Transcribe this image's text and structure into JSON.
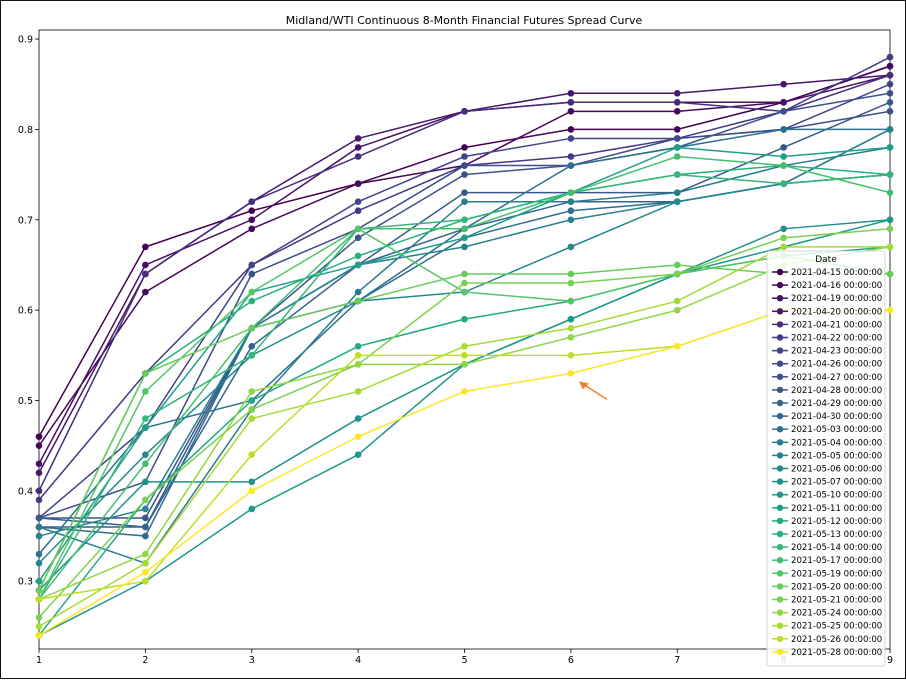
{
  "chart_data": {
    "type": "line",
    "title": "Midland/WTI Continuous 8-Month Financial Futures Spread Curve",
    "xlabel": "",
    "ylabel": "",
    "x": [
      1,
      2,
      3,
      4,
      5,
      6,
      7,
      8,
      9
    ],
    "xlim": [
      1,
      9
    ],
    "ylim": [
      0.225,
      0.91
    ],
    "yticks": [
      0.3,
      0.4,
      0.5,
      0.6,
      0.7,
      0.8,
      0.9
    ],
    "grid": false,
    "legend_title": "Date",
    "legend_position": "center-right",
    "annotation": "orange-arrow",
    "annotation_color": "#f08030",
    "series": [
      {
        "name": "2021-04-15 00:00:00",
        "color": "#440154",
        "values": [
          0.46,
          0.67,
          0.71,
          0.74,
          0.78,
          0.8,
          0.8,
          0.83,
          0.87
        ]
      },
      {
        "name": "2021-04-16 00:00:00",
        "color": "#46085c",
        "values": [
          0.45,
          0.62,
          0.69,
          0.74,
          0.76,
          0.82,
          0.82,
          0.83,
          0.87
        ]
      },
      {
        "name": "2021-04-19 00:00:00",
        "color": "#471063",
        "values": [
          0.43,
          0.65,
          0.7,
          0.78,
          0.82,
          0.83,
          0.83,
          0.83,
          0.86
        ]
      },
      {
        "name": "2021-04-20 00:00:00",
        "color": "#48186a",
        "values": [
          0.42,
          0.64,
          0.72,
          0.79,
          0.82,
          0.84,
          0.84,
          0.85,
          0.86
        ]
      },
      {
        "name": "2021-04-21 00:00:00",
        "color": "#472d7b",
        "values": [
          0.4,
          0.64,
          0.72,
          0.77,
          0.82,
          0.83,
          0.83,
          0.82,
          0.86
        ]
      },
      {
        "name": "2021-04-22 00:00:00",
        "color": "#443983",
        "values": [
          0.39,
          0.53,
          0.65,
          0.71,
          0.76,
          0.77,
          0.79,
          0.82,
          0.88
        ]
      },
      {
        "name": "2021-04-23 00:00:00",
        "color": "#414487",
        "values": [
          0.37,
          0.47,
          0.65,
          0.72,
          0.77,
          0.79,
          0.79,
          0.8,
          0.85
        ]
      },
      {
        "name": "2021-04-26 00:00:00",
        "color": "#3e4c8a",
        "values": [
          0.37,
          0.41,
          0.64,
          0.69,
          0.76,
          0.76,
          0.79,
          0.8,
          0.82
        ]
      },
      {
        "name": "2021-04-27 00:00:00",
        "color": "#3b528b",
        "values": [
          0.37,
          0.37,
          0.58,
          0.68,
          0.75,
          0.76,
          0.78,
          0.82,
          0.84
        ]
      },
      {
        "name": "2021-04-28 00:00:00",
        "color": "#375a8c",
        "values": [
          0.37,
          0.36,
          0.58,
          0.65,
          0.73,
          0.73,
          0.73,
          0.78,
          0.83
        ]
      },
      {
        "name": "2021-04-29 00:00:00",
        "color": "#33638d",
        "values": [
          0.36,
          0.36,
          0.56,
          0.65,
          0.69,
          0.72,
          0.72,
          0.74,
          0.75
        ]
      },
      {
        "name": "2021-04-30 00:00:00",
        "color": "#2f6c8e",
        "values": [
          0.36,
          0.35,
          0.58,
          0.61,
          0.68,
          0.71,
          0.72,
          0.74,
          0.8
        ]
      },
      {
        "name": "2021-05-03 00:00:00",
        "color": "#2c728e",
        "values": [
          0.33,
          0.47,
          0.5,
          0.61,
          0.69,
          0.76,
          0.78,
          0.8,
          0.8
        ]
      },
      {
        "name": "2021-05-04 00:00:00",
        "color": "#297b8e",
        "values": [
          0.36,
          0.32,
          0.49,
          0.62,
          0.72,
          0.72,
          0.73,
          0.76,
          0.78
        ]
      },
      {
        "name": "2021-05-05 00:00:00",
        "color": "#26828e",
        "values": [
          0.35,
          0.38,
          0.58,
          0.65,
          0.67,
          0.7,
          0.72,
          0.74,
          0.8
        ]
      },
      {
        "name": "2021-05-06 00:00:00",
        "color": "#23898e",
        "values": [
          0.32,
          0.44,
          0.55,
          0.61,
          0.62,
          0.67,
          0.72,
          0.74,
          0.75
        ]
      },
      {
        "name": "2021-05-07 00:00:00",
        "color": "#21918c",
        "values": [
          0.29,
          0.41,
          0.41,
          0.48,
          0.54,
          0.59,
          0.64,
          0.69,
          0.7
        ]
      },
      {
        "name": "2021-05-10 00:00:00",
        "color": "#1f988b",
        "values": [
          0.24,
          0.3,
          0.38,
          0.44,
          0.54,
          0.59,
          0.64,
          0.67,
          0.7
        ]
      },
      {
        "name": "2021-05-11 00:00:00",
        "color": "#1fa088",
        "values": [
          0.3,
          0.47,
          0.62,
          0.65,
          0.68,
          0.73,
          0.78,
          0.77,
          0.78
        ]
      },
      {
        "name": "2021-05-12 00:00:00",
        "color": "#22a884",
        "values": [
          0.24,
          0.39,
          0.5,
          0.56,
          0.59,
          0.61,
          0.64,
          0.66,
          0.67
        ]
      },
      {
        "name": "2021-05-13 00:00:00",
        "color": "#2ab07f",
        "values": [
          0.29,
          0.53,
          0.61,
          0.66,
          0.7,
          0.73,
          0.75,
          0.76,
          0.75
        ]
      },
      {
        "name": "2021-05-14 00:00:00",
        "color": "#35b779",
        "values": [
          0.28,
          0.48,
          0.55,
          0.69,
          0.7,
          0.73,
          0.75,
          0.74,
          0.75
        ]
      },
      {
        "name": "2021-05-17 00:00:00",
        "color": "#44bf70",
        "values": [
          0.28,
          0.43,
          0.58,
          0.69,
          0.69,
          0.73,
          0.77,
          0.76,
          0.73
        ]
      },
      {
        "name": "2021-05-19 00:00:00",
        "color": "#54c568",
        "values": [
          0.28,
          0.51,
          0.62,
          0.69,
          0.62,
          0.61,
          0.64,
          0.66,
          0.64
        ]
      },
      {
        "name": "2021-05-20 00:00:00",
        "color": "#67cc5c",
        "values": [
          0.29,
          0.53,
          0.58,
          0.61,
          0.64,
          0.64,
          0.65,
          0.64,
          0.64
        ]
      },
      {
        "name": "2021-05-21 00:00:00",
        "color": "#7ad151",
        "values": [
          0.26,
          0.39,
          0.49,
          0.54,
          0.63,
          0.63,
          0.64,
          0.68,
          0.69
        ]
      },
      {
        "name": "2021-05-24 00:00:00",
        "color": "#90d743",
        "values": [
          0.28,
          0.33,
          0.51,
          0.54,
          0.54,
          0.57,
          0.6,
          0.65,
          0.67
        ]
      },
      {
        "name": "2021-05-25 00:00:00",
        "color": "#a5db36",
        "values": [
          0.25,
          0.32,
          0.48,
          0.51,
          0.56,
          0.58,
          0.61,
          0.67,
          0.67
        ]
      },
      {
        "name": "2021-05-26 00:00:00",
        "color": "#bddf26",
        "values": [
          0.28,
          0.3,
          0.44,
          0.55,
          0.55,
          0.55,
          0.56,
          0.6,
          0.6
        ]
      },
      {
        "name": "2021-05-28 00:00:00",
        "color": "#fde725",
        "values": [
          0.24,
          0.31,
          0.4,
          0.46,
          0.51,
          0.53,
          0.56,
          0.6,
          0.6
        ]
      }
    ]
  }
}
